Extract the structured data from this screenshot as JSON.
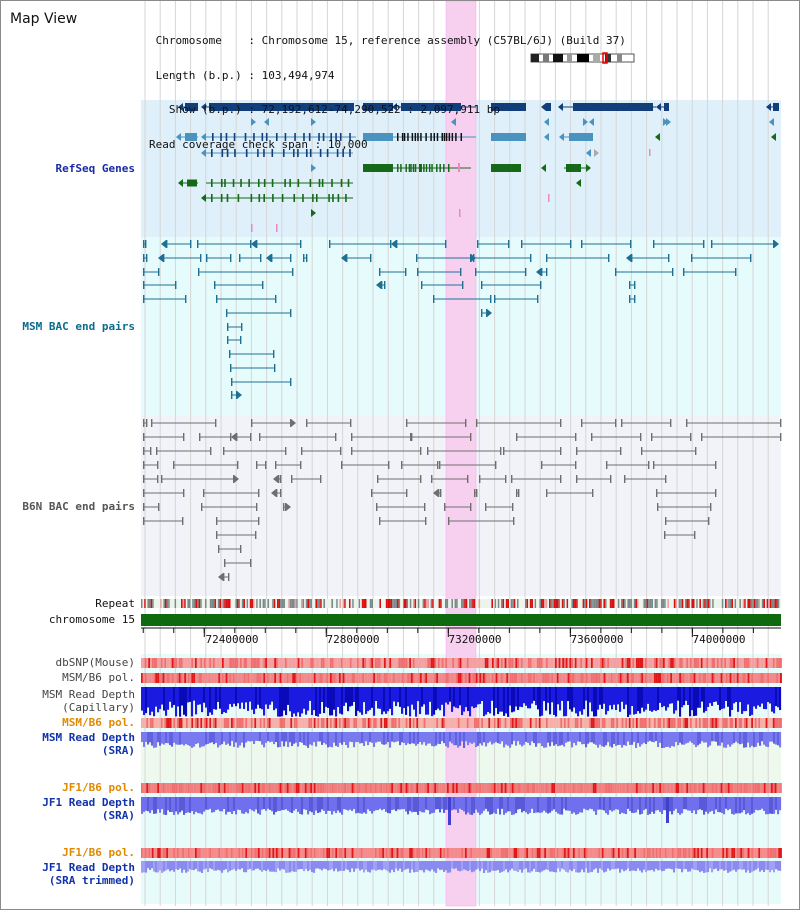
{
  "title": "Map View",
  "info": {
    "chromosome_label": "Chromosome",
    "chromosome_value": "Chromosome 15, reference assembly (C57BL/6J) (Build 37)",
    "length_label": "Length (b.p.)",
    "length_value": "103,494,974",
    "show_label": "Show (b.p.)",
    "show_value": "72,192,612-74,290,522 : 2,097,911 bp",
    "span_label": "Read coverage check span",
    "span_value": "10,000"
  },
  "sections": {
    "refseq": "RefSeq Genes",
    "msm_bac": "MSM BAC end pairs",
    "b6n_bac": "B6N BAC end pairs"
  },
  "tracks": {
    "repeat": "Repeat",
    "chromosome": "chromosome 15",
    "dbsnp": "dbSNP(Mouse)",
    "msm_b6_pol_1": "MSM/B6 pol.",
    "msm_depth_cap_1": "MSM Read Depth",
    "msm_depth_cap_2": "(Capillary)",
    "msm_b6_pol_2": "MSM/B6 pol.",
    "msm_depth_sra_1": "MSM Read Depth",
    "msm_depth_sra_2": "(SRA)",
    "jf1_b6_pol_1": "JF1/B6 pol.",
    "jf1_depth_sra_1": "JF1 Read Depth",
    "jf1_depth_sra_2": "(SRA)",
    "jf1_b6_pol_2": "JF1/B6 pol.",
    "jf1_depth_trim_1": "JF1 Read Depth",
    "jf1_depth_trim_2": "(SRA trimmed)"
  },
  "axis": {
    "ticks": [
      "72400000",
      "72800000",
      "73200000",
      "73600000",
      "74000000"
    ],
    "tick_values": [
      72400000,
      72800000,
      73200000,
      73600000,
      74000000
    ],
    "start": 72192612,
    "end": 74290522
  },
  "colors": {
    "refseq_bg": "#dff0fa",
    "msm_bg": "#e6fbfb",
    "b6n_bg": "#f2f3f9",
    "highlight": "#f7d0f0",
    "navy": "#123e7a",
    "steel": "#4a93bf",
    "green": "#17691a",
    "teal": "#1f6f93",
    "gray": "#6e6e6e",
    "label_navy": "#1a2aa3",
    "label_teal": "#0b6b8f",
    "label_gray": "#555555",
    "label_orange": "#e08a00",
    "label_blue": "#1133aa"
  }
}
